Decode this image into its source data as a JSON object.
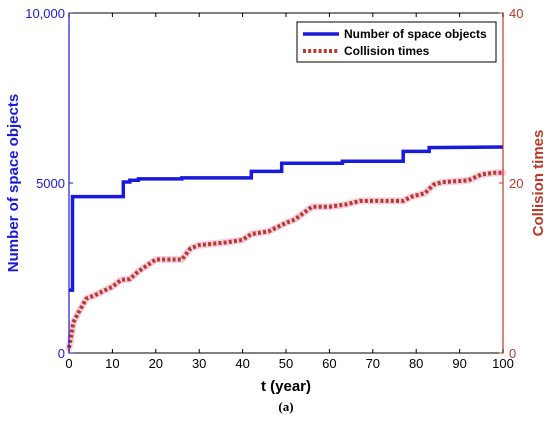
{
  "chart_data": {
    "type": "line",
    "xlabel": "t (year)",
    "ylabel": "Number of space objects",
    "y2label": "Collision times",
    "caption": "(a)",
    "xlim": [
      0,
      100
    ],
    "ylim": [
      0,
      10000
    ],
    "y2lim": [
      0,
      40
    ],
    "x_ticks": [
      0,
      10,
      20,
      30,
      40,
      50,
      60,
      70,
      80,
      90,
      100
    ],
    "x_tick_labels": [
      "0",
      "10",
      "20",
      "30",
      "40",
      "50",
      "60",
      "70",
      "80",
      "90",
      "100"
    ],
    "y_ticks": [
      0,
      5000,
      10000
    ],
    "y_tick_labels": [
      "0",
      "5000",
      "10,000"
    ],
    "y2_ticks": [
      0,
      20,
      40
    ],
    "y2_tick_labels": [
      "0",
      "20",
      "40"
    ],
    "legend_position": "top-right",
    "colors": {
      "left_axis": "#1a1adb",
      "right_axis": "#b83a2a",
      "series1": "#1a1adb",
      "series2": "#b83a2a"
    },
    "series": [
      {
        "name": "Number of space objects",
        "axis": "left",
        "style": "solid",
        "x": [
          0,
          0.8,
          0.8,
          12.5,
          12.5,
          14,
          14,
          16,
          16,
          26,
          26,
          42,
          42,
          49,
          49,
          63,
          63,
          77,
          77,
          83,
          83,
          100
        ],
        "y": [
          1850,
          1850,
          4600,
          4600,
          5030,
          5030,
          5080,
          5080,
          5120,
          5120,
          5150,
          5150,
          5340,
          5340,
          5580,
          5580,
          5640,
          5640,
          5930,
          5930,
          6040,
          6060
        ]
      },
      {
        "name": "Collision times",
        "axis": "right",
        "style": "dotted",
        "x": [
          0,
          0.5,
          1,
          2,
          4,
          6,
          8,
          10,
          12,
          14,
          16,
          18,
          20,
          24,
          26,
          28,
          30,
          36,
          40,
          42,
          46,
          50,
          52,
          56,
          60,
          64,
          67,
          72,
          77,
          79,
          82,
          84,
          86,
          89,
          92,
          95,
          98,
          100
        ],
        "y": [
          0.6,
          2,
          3.6,
          4.6,
          6.4,
          6.8,
          7.3,
          7.8,
          8.6,
          8.7,
          9.6,
          10.3,
          11,
          11,
          11,
          12.3,
          12.7,
          13,
          13.3,
          14,
          14.3,
          15.3,
          15.7,
          17.2,
          17.2,
          17.5,
          17.9,
          17.9,
          17.9,
          18.4,
          18.8,
          19.8,
          20.1,
          20.2,
          20.3,
          21,
          21.2,
          21.2
        ]
      }
    ]
  }
}
